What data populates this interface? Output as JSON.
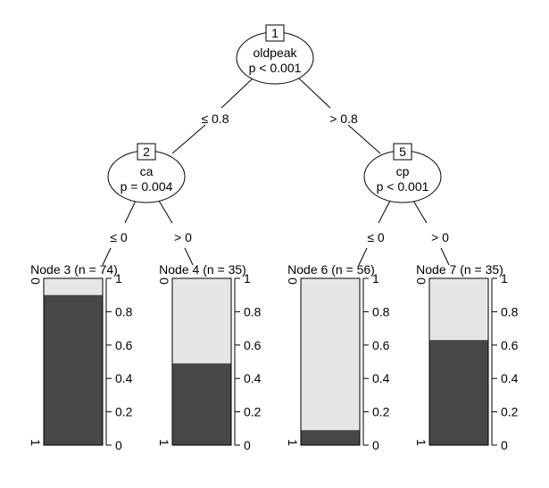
{
  "tree": {
    "inner_nodes": [
      {
        "id": "1",
        "variable": "oldpeak",
        "p_value": "p < 0.001"
      },
      {
        "id": "2",
        "variable": "ca",
        "p_value": "p = 0.004"
      },
      {
        "id": "5",
        "variable": "cp",
        "p_value": "p < 0.001"
      }
    ],
    "edges": [
      {
        "label": "≤ 0.8"
      },
      {
        "label": "> 0.8"
      },
      {
        "label": "≤ 0"
      },
      {
        "label": "> 0"
      },
      {
        "label": "≤ 0"
      },
      {
        "label": "> 0"
      }
    ]
  },
  "chart_data": {
    "type": "bar",
    "panels": [
      {
        "title": "Node 3 (n = 74)",
        "proportion_class_1": 0.9,
        "proportion_class_0": 0.1
      },
      {
        "title": "Node 4 (n = 35)",
        "proportion_class_1": 0.49,
        "proportion_class_0": 0.51
      },
      {
        "title": "Node 6 (n = 56)",
        "proportion_class_1": 0.09,
        "proportion_class_0": 0.91
      },
      {
        "title": "Node 7 (n = 35)",
        "proportion_class_1": 0.63,
        "proportion_class_0": 0.37
      }
    ],
    "class_labels": [
      "0",
      "1"
    ],
    "ylim": [
      0,
      1
    ],
    "yticks": [
      "0",
      "0.2",
      "0.4",
      "0.6",
      "0.8",
      "1"
    ],
    "colors": {
      "class_1": "#474747",
      "class_0": "#e6e6e6"
    }
  }
}
